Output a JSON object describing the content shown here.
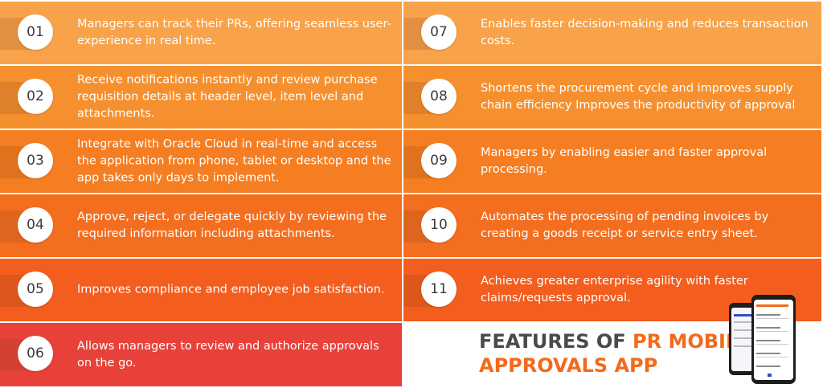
{
  "features": [
    {
      "num": "01",
      "text": "Managers can track their PRs, offering seamless user-experience in real time.",
      "color": "#f8a24a"
    },
    {
      "num": "02",
      "text": "Receive notifications instantly and review purchase requisition details at header level, item level and attachments.",
      "color": "#f6902f"
    },
    {
      "num": "03",
      "text": "Integrate with Oracle Cloud in real-time and access the application from phone, tablet or desktop and the app takes only days to implement.",
      "color": "#f57e22"
    },
    {
      "num": "04",
      "text": "Approve, reject, or delegate quickly by reviewing the required information including attachments.",
      "color": "#f46e1f"
    },
    {
      "num": "05",
      "text": "Improves compliance and employee job satisfaction.",
      "color": "#f35d1e"
    },
    {
      "num": "06",
      "text": "Allows managers to review and authorize approvals on the go.",
      "color": "#e8413a"
    },
    {
      "num": "07",
      "text": "Enables faster decision-making and reduces transaction costs.",
      "color": "#f8a24a"
    },
    {
      "num": "08",
      "text": "Shortens the procurement cycle and improves supply chain efficiency Improves the productivity of approval",
      "color": "#f6902f"
    },
    {
      "num": "09",
      "text": "Managers by enabling easier and faster approval processing.",
      "color": "#f57e22"
    },
    {
      "num": "10",
      "text": "Automates the processing of pending invoices by creating a goods receipt or service entry sheet.",
      "color": "#f46e1f"
    },
    {
      "num": "11",
      "text": "Achieves greater enterprise agility with faster claims/requests approval.",
      "color": "#f35d1e"
    }
  ],
  "title": {
    "part1": "FEATURES OF ",
    "part2": "PR MOBILE",
    "part3": "APPROVALS APP"
  },
  "colors": {
    "accent": "#f26a1b",
    "title_gray": "#4a4a4a"
  }
}
